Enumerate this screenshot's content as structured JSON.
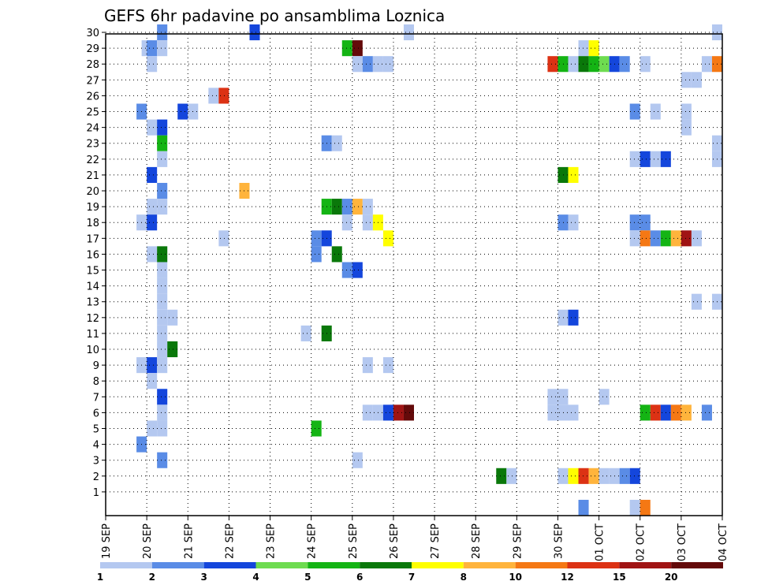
{
  "chart_data": {
    "type": "heatmap",
    "title": "GEFS 6hr padavine po ansamblima Loznica",
    "xlabel": "",
    "ylabel": "",
    "y_ticks": [
      1,
      2,
      3,
      4,
      5,
      6,
      7,
      8,
      9,
      10,
      11,
      12,
      13,
      14,
      15,
      16,
      17,
      18,
      19,
      20,
      21,
      22,
      23,
      24,
      25,
      26,
      27,
      28,
      29,
      30
    ],
    "y_range": [
      0,
      30
    ],
    "x_ticks": [
      "19 SEP",
      "20 SEP",
      "21 SEP",
      "22 SEP",
      "23 SEP",
      "24 SEP",
      "25 SEP",
      "26 SEP",
      "27 SEP",
      "28 SEP",
      "29 SEP",
      "30 SEP",
      "01 OCT",
      "02 OCT",
      "03 OCT",
      "04 OCT"
    ],
    "x_range_days": [
      0,
      15
    ],
    "grid": true,
    "colorbar": {
      "labels": [
        "1",
        "2",
        "3",
        "4",
        "5",
        "6",
        "7",
        "8",
        "10",
        "12",
        "15",
        "20"
      ],
      "colors": [
        "#b4c8f0",
        "#5a8ce6",
        "#1446dc",
        "#6edc50",
        "#14b414",
        "#0a780a",
        "#ffff00",
        "#ffb43c",
        "#f57814",
        "#dc3214",
        "#a01414",
        "#640a0a"
      ]
    },
    "cells": [
      {
        "d": 1.375,
        "m": 30,
        "c": 2
      },
      {
        "d": 3.625,
        "m": 30,
        "c": 3
      },
      {
        "d": 7.375,
        "m": 30,
        "c": 1
      },
      {
        "d": 14.875,
        "m": 30,
        "c": 1
      },
      {
        "d": 1.0,
        "m": 29,
        "c": 1
      },
      {
        "d": 1.125,
        "m": 29,
        "c": 2
      },
      {
        "d": 1.375,
        "m": 29,
        "c": 1
      },
      {
        "d": 5.875,
        "m": 29,
        "c": 5
      },
      {
        "d": 6.125,
        "m": 29,
        "c": 12
      },
      {
        "d": 11.625,
        "m": 29,
        "c": 1
      },
      {
        "d": 11.875,
        "m": 29,
        "c": 7
      },
      {
        "d": 1.125,
        "m": 28,
        "c": 1
      },
      {
        "d": 6.125,
        "m": 28,
        "c": 1
      },
      {
        "d": 6.375,
        "m": 28,
        "c": 2
      },
      {
        "d": 6.625,
        "m": 28,
        "c": 1
      },
      {
        "d": 6.875,
        "m": 28,
        "c": 1
      },
      {
        "d": 10.875,
        "m": 28,
        "c": 10
      },
      {
        "d": 11.125,
        "m": 28,
        "c": 5
      },
      {
        "d": 11.375,
        "m": 28,
        "c": 1
      },
      {
        "d": 11.625,
        "m": 28,
        "c": 6
      },
      {
        "d": 11.875,
        "m": 28,
        "c": 5
      },
      {
        "d": 12.125,
        "m": 28,
        "c": 4
      },
      {
        "d": 12.375,
        "m": 28,
        "c": 3
      },
      {
        "d": 12.625,
        "m": 28,
        "c": 2
      },
      {
        "d": 13.125,
        "m": 28,
        "c": 1
      },
      {
        "d": 14.625,
        "m": 28,
        "c": 1
      },
      {
        "d": 14.875,
        "m": 28,
        "c": 9
      },
      {
        "d": 14.125,
        "m": 27,
        "c": 1
      },
      {
        "d": 14.375,
        "m": 27,
        "c": 1
      },
      {
        "d": 2.625,
        "m": 26,
        "c": 1
      },
      {
        "d": 2.875,
        "m": 26,
        "c": 10
      },
      {
        "d": 0.875,
        "m": 25,
        "c": 2
      },
      {
        "d": 1.875,
        "m": 25,
        "c": 3
      },
      {
        "d": 2.125,
        "m": 25,
        "c": 1
      },
      {
        "d": 12.875,
        "m": 25,
        "c": 2
      },
      {
        "d": 13.375,
        "m": 25,
        "c": 1
      },
      {
        "d": 14.125,
        "m": 25,
        "c": 1
      },
      {
        "d": 1.125,
        "m": 24,
        "c": 1
      },
      {
        "d": 1.375,
        "m": 24,
        "c": 3
      },
      {
        "d": 14.125,
        "m": 24,
        "c": 1
      },
      {
        "d": 1.375,
        "m": 23,
        "c": 5
      },
      {
        "d": 5.375,
        "m": 23,
        "c": 2
      },
      {
        "d": 5.625,
        "m": 23,
        "c": 1
      },
      {
        "d": 14.875,
        "m": 23,
        "c": 1
      },
      {
        "d": 1.375,
        "m": 22,
        "c": 1
      },
      {
        "d": 12.875,
        "m": 22,
        "c": 1
      },
      {
        "d": 13.125,
        "m": 22,
        "c": 3
      },
      {
        "d": 13.375,
        "m": 22,
        "c": 1
      },
      {
        "d": 13.625,
        "m": 22,
        "c": 3
      },
      {
        "d": 14.875,
        "m": 22,
        "c": 1
      },
      {
        "d": 1.125,
        "m": 21,
        "c": 3
      },
      {
        "d": 11.125,
        "m": 21,
        "c": 6
      },
      {
        "d": 11.375,
        "m": 21,
        "c": 7
      },
      {
        "d": 1.375,
        "m": 20,
        "c": 2
      },
      {
        "d": 3.375,
        "m": 20,
        "c": 8
      },
      {
        "d": 1.125,
        "m": 19,
        "c": 1
      },
      {
        "d": 1.375,
        "m": 19,
        "c": 1
      },
      {
        "d": 5.375,
        "m": 19,
        "c": 5
      },
      {
        "d": 5.625,
        "m": 19,
        "c": 6
      },
      {
        "d": 5.875,
        "m": 19,
        "c": 2
      },
      {
        "d": 6.125,
        "m": 19,
        "c": 8
      },
      {
        "d": 6.375,
        "m": 19,
        "c": 1
      },
      {
        "d": 0.875,
        "m": 18,
        "c": 1
      },
      {
        "d": 1.125,
        "m": 18,
        "c": 3
      },
      {
        "d": 5.875,
        "m": 18,
        "c": 1
      },
      {
        "d": 6.375,
        "m": 18,
        "c": 1
      },
      {
        "d": 6.625,
        "m": 18,
        "c": 7
      },
      {
        "d": 11.125,
        "m": 18,
        "c": 2
      },
      {
        "d": 11.375,
        "m": 18,
        "c": 1
      },
      {
        "d": 12.875,
        "m": 18,
        "c": 2
      },
      {
        "d": 13.125,
        "m": 18,
        "c": 2
      },
      {
        "d": 2.875,
        "m": 17,
        "c": 1
      },
      {
        "d": 5.125,
        "m": 17,
        "c": 2
      },
      {
        "d": 5.375,
        "m": 17,
        "c": 3
      },
      {
        "d": 6.875,
        "m": 17,
        "c": 7
      },
      {
        "d": 12.875,
        "m": 17,
        "c": 1
      },
      {
        "d": 13.125,
        "m": 17,
        "c": 9
      },
      {
        "d": 13.375,
        "m": 17,
        "c": 2
      },
      {
        "d": 13.625,
        "m": 17,
        "c": 5
      },
      {
        "d": 13.875,
        "m": 17,
        "c": 8
      },
      {
        "d": 14.125,
        "m": 17,
        "c": 11
      },
      {
        "d": 14.375,
        "m": 17,
        "c": 1
      },
      {
        "d": 1.125,
        "m": 16,
        "c": 1
      },
      {
        "d": 1.375,
        "m": 16,
        "c": 6
      },
      {
        "d": 5.125,
        "m": 16,
        "c": 2
      },
      {
        "d": 5.625,
        "m": 16,
        "c": 6
      },
      {
        "d": 1.375,
        "m": 15,
        "c": 1
      },
      {
        "d": 5.875,
        "m": 15,
        "c": 2
      },
      {
        "d": 6.125,
        "m": 15,
        "c": 3
      },
      {
        "d": 1.375,
        "m": 14,
        "c": 1
      },
      {
        "d": 1.375,
        "m": 13,
        "c": 1
      },
      {
        "d": 14.375,
        "m": 13,
        "c": 1
      },
      {
        "d": 14.875,
        "m": 13,
        "c": 1
      },
      {
        "d": 1.375,
        "m": 12,
        "c": 1
      },
      {
        "d": 1.625,
        "m": 12,
        "c": 1
      },
      {
        "d": 11.125,
        "m": 12,
        "c": 1
      },
      {
        "d": 11.375,
        "m": 12,
        "c": 3
      },
      {
        "d": 1.375,
        "m": 11,
        "c": 1
      },
      {
        "d": 4.875,
        "m": 11,
        "c": 1
      },
      {
        "d": 5.375,
        "m": 11,
        "c": 6
      },
      {
        "d": 1.375,
        "m": 10,
        "c": 1
      },
      {
        "d": 1.625,
        "m": 10,
        "c": 6
      },
      {
        "d": 0.875,
        "m": 9,
        "c": 1
      },
      {
        "d": 1.125,
        "m": 9,
        "c": 3
      },
      {
        "d": 1.375,
        "m": 9,
        "c": 1
      },
      {
        "d": 6.375,
        "m": 9,
        "c": 1
      },
      {
        "d": 6.875,
        "m": 9,
        "c": 1
      },
      {
        "d": 1.125,
        "m": 8,
        "c": 1
      },
      {
        "d": 1.375,
        "m": 7,
        "c": 3
      },
      {
        "d": 10.875,
        "m": 7,
        "c": 1
      },
      {
        "d": 11.125,
        "m": 7,
        "c": 1
      },
      {
        "d": 12.125,
        "m": 7,
        "c": 1
      },
      {
        "d": 1.375,
        "m": 6,
        "c": 1
      },
      {
        "d": 6.375,
        "m": 6,
        "c": 1
      },
      {
        "d": 6.625,
        "m": 6,
        "c": 1
      },
      {
        "d": 6.875,
        "m": 6,
        "c": 3
      },
      {
        "d": 7.125,
        "m": 6,
        "c": 11
      },
      {
        "d": 7.375,
        "m": 6,
        "c": 12
      },
      {
        "d": 10.875,
        "m": 6,
        "c": 1
      },
      {
        "d": 11.125,
        "m": 6,
        "c": 1
      },
      {
        "d": 11.375,
        "m": 6,
        "c": 1
      },
      {
        "d": 13.125,
        "m": 6,
        "c": 5
      },
      {
        "d": 13.375,
        "m": 6,
        "c": 10
      },
      {
        "d": 13.625,
        "m": 6,
        "c": 3
      },
      {
        "d": 13.875,
        "m": 6,
        "c": 9
      },
      {
        "d": 14.125,
        "m": 6,
        "c": 8
      },
      {
        "d": 14.625,
        "m": 6,
        "c": 2
      },
      {
        "d": 1.125,
        "m": 5,
        "c": 1
      },
      {
        "d": 1.375,
        "m": 5,
        "c": 1
      },
      {
        "d": 5.125,
        "m": 5,
        "c": 5
      },
      {
        "d": 0.875,
        "m": 4,
        "c": 2
      },
      {
        "d": 1.375,
        "m": 3,
        "c": 2
      },
      {
        "d": 6.125,
        "m": 3,
        "c": 1
      },
      {
        "d": 9.625,
        "m": 2,
        "c": 6
      },
      {
        "d": 9.875,
        "m": 2,
        "c": 1
      },
      {
        "d": 11.125,
        "m": 2,
        "c": 1
      },
      {
        "d": 11.375,
        "m": 2,
        "c": 7
      },
      {
        "d": 11.625,
        "m": 2,
        "c": 10
      },
      {
        "d": 11.875,
        "m": 2,
        "c": 8
      },
      {
        "d": 12.125,
        "m": 2,
        "c": 1
      },
      {
        "d": 12.375,
        "m": 2,
        "c": 1
      },
      {
        "d": 12.625,
        "m": 2,
        "c": 2
      },
      {
        "d": 12.875,
        "m": 2,
        "c": 3
      },
      {
        "d": 11.625,
        "m": 0,
        "c": 2
      },
      {
        "d": 12.875,
        "m": 0,
        "c": 1
      },
      {
        "d": 13.125,
        "m": 0,
        "c": 9
      }
    ]
  }
}
